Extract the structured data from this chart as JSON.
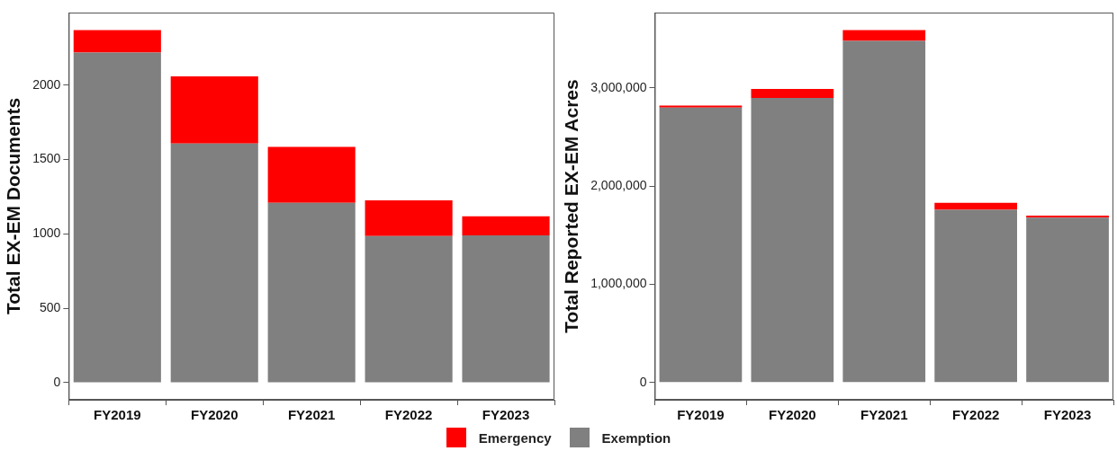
{
  "chart_data": [
    {
      "type": "bar",
      "ylabel": "Total EX-EM Documents",
      "categories": [
        "FY2019",
        "FY2020",
        "FY2021",
        "FY2022",
        "FY2023"
      ],
      "stacked": true,
      "series": [
        {
          "name": "Exemption",
          "color": "#808080",
          "values": [
            2218,
            1607,
            1209,
            986,
            990
          ]
        },
        {
          "name": "Emergency",
          "color": "#ff0000",
          "values": [
            151,
            451,
            376,
            239,
            128
          ]
        }
      ],
      "ylim": [
        -115,
        2487
      ],
      "yticks": [
        0,
        500,
        1000,
        1500,
        2000
      ],
      "grid": false,
      "legend": "bottom"
    },
    {
      "type": "bar",
      "ylabel": "Total Reported EX-EM Acres",
      "categories": [
        "FY2019",
        "FY2020",
        "FY2021",
        "FY2022",
        "FY2023"
      ],
      "stacked": true,
      "series": [
        {
          "color": "#808080",
          "values": [
            2800000,
            2900000,
            3480000,
            1760000,
            1680000
          ]
        },
        {
          "color": "#ff0000",
          "values": [
            20000,
            90000,
            110000,
            70000,
            20000
          ]
        }
      ],
      "ylim": [
        -175000,
        3768000
      ],
      "yticks": [
        0,
        {
          "value": 1000000,
          "label": "1,000,000"
        },
        {
          "value": 2000000,
          "label": "2,000,000"
        },
        {
          "value": 3000000,
          "label": "3,000,000"
        }
      ],
      "grid": false
    }
  ]
}
